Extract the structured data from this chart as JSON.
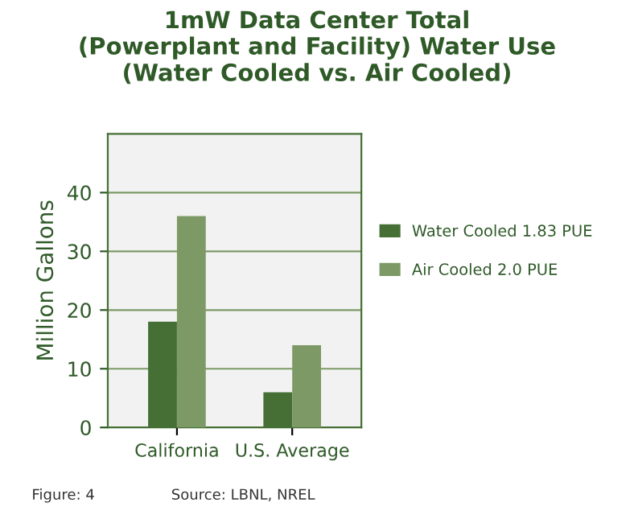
{
  "chart_data": {
    "type": "bar",
    "title": "1mW Data Center Total\n(Powerplant and Facility) Water Use\n(Water Cooled vs. Air Cooled)",
    "ylabel": "Million Gallons",
    "categories": [
      "California",
      "U.S. Average"
    ],
    "series": [
      {
        "name": "Water Cooled 1.83 PUE",
        "color": "#466f36",
        "values": [
          18,
          6
        ]
      },
      {
        "name": "Air Cooled 2.0 PUE",
        "color": "#7d9a66",
        "values": [
          36,
          14
        ]
      }
    ],
    "ylim": [
      0,
      50
    ],
    "yticks": [
      0,
      10,
      20,
      30,
      40
    ],
    "grid": "y",
    "legend": "right",
    "annotations": [
      "Figure: 4",
      "Source: LBNL, NREL"
    ]
  }
}
